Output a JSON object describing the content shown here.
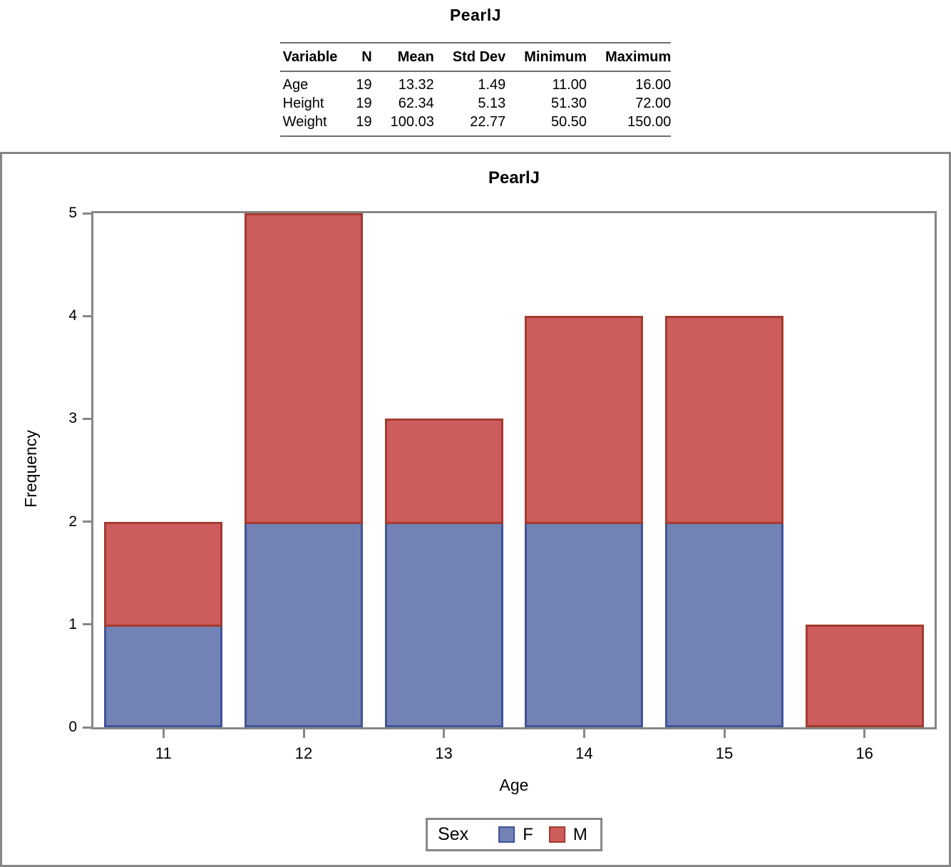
{
  "report": {
    "title": "PearlJ"
  },
  "stats_table": {
    "columns": [
      "Variable",
      "N",
      "Mean",
      "Std Dev",
      "Minimum",
      "Maximum"
    ],
    "rows": [
      [
        "Age",
        "19",
        "13.32",
        "1.49",
        "11.00",
        "16.00"
      ],
      [
        "Height",
        "19",
        "62.34",
        "5.13",
        "51.30",
        "72.00"
      ],
      [
        "Weight",
        "19",
        "100.03",
        "22.77",
        "50.50",
        "150.00"
      ]
    ]
  },
  "chart": {
    "title": "PearlJ",
    "legend_title": "Sex"
  },
  "chart_data": {
    "type": "bar",
    "stacked": true,
    "title": "PearlJ",
    "xlabel": "Age",
    "ylabel": "Frequency",
    "categories": [
      "11",
      "12",
      "13",
      "14",
      "15",
      "16"
    ],
    "series": [
      {
        "name": "F",
        "values": [
          1,
          2,
          2,
          2,
          2,
          0
        ],
        "fill": "#7282B5",
        "border": "#3F5398"
      },
      {
        "name": "M",
        "values": [
          1,
          3,
          1,
          2,
          2,
          1
        ],
        "fill": "#CD5C5C",
        "border": "#A43B2F"
      }
    ],
    "ylim": [
      0,
      5
    ],
    "yticks": [
      0,
      1,
      2,
      3,
      4,
      5
    ],
    "grid": false,
    "legend_position": "bottom",
    "legend_title": "Sex"
  },
  "colors": {
    "frame_gray": "#868686",
    "female_fill": "#7282B5",
    "female_border": "#3F5398",
    "male_fill": "#CD5C5C",
    "male_border": "#A43B2F"
  }
}
